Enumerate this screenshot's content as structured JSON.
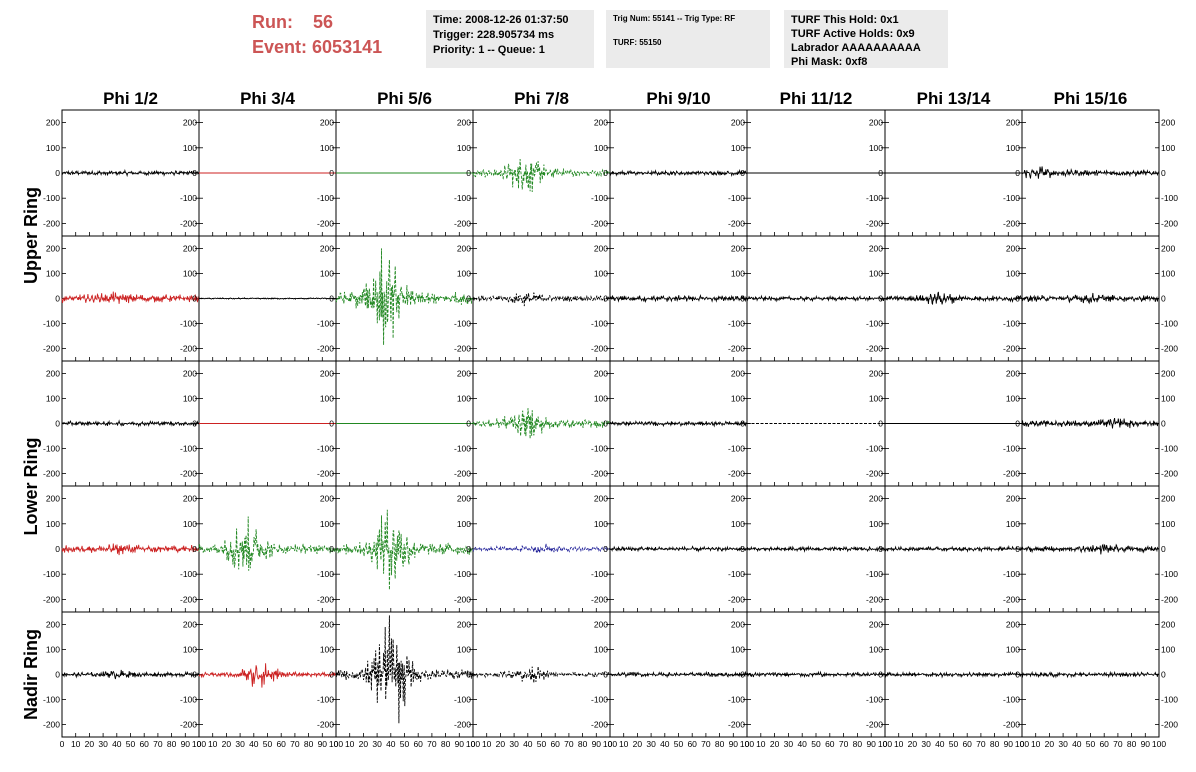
{
  "header": {
    "run_label": "Run:",
    "run_value": "56",
    "event_label": "Event:",
    "event_value": "6053141",
    "time_box": [
      "Time: 2008-12-26 01:37:50",
      "Trigger: 228.905734 ms",
      "Priority: 1 -- Queue: 1"
    ],
    "trig_box": [
      "Trig Num: 55141 -- Trig Type: RF",
      "",
      "TURF: 55150"
    ],
    "turf_box": [
      "TURF This Hold: 0x1",
      "TURF Active Holds: 0x9",
      "Labrador AAAAAAAAAA",
      "Phi Mask: 0xf8"
    ]
  },
  "chart_data": {
    "type": "line",
    "title": "",
    "columns": [
      "Phi 1/2",
      "Phi 3/4",
      "Phi 5/6",
      "Phi 7/8",
      "Phi 9/10",
      "Phi 11/12",
      "Phi 13/14",
      "Phi 15/16"
    ],
    "ring_labels": [
      "Upper Ring",
      "Lower Ring",
      "Nadir Ring"
    ],
    "xlim": [
      0,
      100
    ],
    "ylim": [
      -250,
      250
    ],
    "x_ticks": [
      0,
      10,
      20,
      30,
      40,
      50,
      60,
      70,
      80,
      90,
      100
    ],
    "y_ticks": [
      -200,
      -100,
      0,
      100,
      200
    ],
    "grid": false,
    "colors": {
      "black": "#000000",
      "red": "#cc2222",
      "green": "#228822",
      "blue": "#222299"
    },
    "panels": [
      {
        "row": 0,
        "col": 0,
        "color": "black",
        "style": "solid",
        "amp": 10,
        "burst_center": 50,
        "burst_amp": 0
      },
      {
        "row": 0,
        "col": 1,
        "color": "red",
        "style": "solid",
        "amp": 0,
        "burst_center": 50,
        "burst_amp": 0
      },
      {
        "row": 0,
        "col": 2,
        "color": "green",
        "style": "solid",
        "amp": 0,
        "burst_center": 50,
        "burst_amp": 0
      },
      {
        "row": 0,
        "col": 3,
        "color": "green",
        "style": "dashed",
        "amp": 18,
        "burst_center": 38,
        "burst_amp": 75
      },
      {
        "row": 0,
        "col": 4,
        "color": "black",
        "style": "solid",
        "amp": 10,
        "burst_center": 50,
        "burst_amp": 0
      },
      {
        "row": 0,
        "col": 5,
        "color": "black",
        "style": "solid",
        "amp": 0,
        "burst_center": 50,
        "burst_amp": 0
      },
      {
        "row": 0,
        "col": 6,
        "color": "black",
        "style": "solid",
        "amp": 0,
        "burst_center": 50,
        "burst_amp": 0
      },
      {
        "row": 0,
        "col": 7,
        "color": "black",
        "style": "solid",
        "amp": 14,
        "burst_center": 10,
        "burst_amp": 20
      },
      {
        "row": 1,
        "col": 0,
        "color": "red",
        "style": "solid",
        "amp": 18,
        "burst_center": 40,
        "burst_amp": 10
      },
      {
        "row": 1,
        "col": 1,
        "color": "black",
        "style": "solid",
        "amp": 3,
        "burst_center": 50,
        "burst_amp": 0
      },
      {
        "row": 1,
        "col": 2,
        "color": "green",
        "style": "dashed",
        "amp": 30,
        "burst_center": 35,
        "burst_amp": 190
      },
      {
        "row": 1,
        "col": 3,
        "color": "black",
        "style": "dashed",
        "amp": 12,
        "burst_center": 40,
        "burst_amp": 20
      },
      {
        "row": 1,
        "col": 4,
        "color": "black",
        "style": "solid",
        "amp": 14,
        "burst_center": 50,
        "burst_amp": 0
      },
      {
        "row": 1,
        "col": 5,
        "color": "black",
        "style": "solid",
        "amp": 10,
        "burst_center": 50,
        "burst_amp": 0
      },
      {
        "row": 1,
        "col": 6,
        "color": "black",
        "style": "solid",
        "amp": 12,
        "burst_center": 40,
        "burst_amp": 20
      },
      {
        "row": 1,
        "col": 7,
        "color": "black",
        "style": "solid",
        "amp": 14,
        "burst_center": 50,
        "burst_amp": 10
      },
      {
        "row": 2,
        "col": 0,
        "color": "black",
        "style": "solid",
        "amp": 10,
        "burst_center": 50,
        "burst_amp": 0
      },
      {
        "row": 2,
        "col": 1,
        "color": "red",
        "style": "solid",
        "amp": 0,
        "burst_center": 50,
        "burst_amp": 0
      },
      {
        "row": 2,
        "col": 2,
        "color": "green",
        "style": "solid",
        "amp": 0,
        "burst_center": 50,
        "burst_amp": 0
      },
      {
        "row": 2,
        "col": 3,
        "color": "green",
        "style": "dashed",
        "amp": 18,
        "burst_center": 38,
        "burst_amp": 70
      },
      {
        "row": 2,
        "col": 4,
        "color": "black",
        "style": "solid",
        "amp": 10,
        "burst_center": 50,
        "burst_amp": 0
      },
      {
        "row": 2,
        "col": 5,
        "color": "black",
        "style": "dashed",
        "amp": 0,
        "burst_center": 50,
        "burst_amp": 0
      },
      {
        "row": 2,
        "col": 6,
        "color": "black",
        "style": "solid",
        "amp": 0,
        "burst_center": 50,
        "burst_amp": 0
      },
      {
        "row": 2,
        "col": 7,
        "color": "black",
        "style": "solid",
        "amp": 14,
        "burst_center": 70,
        "burst_amp": 10
      },
      {
        "row": 3,
        "col": 0,
        "color": "red",
        "style": "solid",
        "amp": 16,
        "burst_center": 40,
        "burst_amp": 10
      },
      {
        "row": 3,
        "col": 1,
        "color": "green",
        "style": "dashed",
        "amp": 22,
        "burst_center": 35,
        "burst_amp": 120
      },
      {
        "row": 3,
        "col": 2,
        "color": "green",
        "style": "dashed",
        "amp": 26,
        "burst_center": 40,
        "burst_amp": 150
      },
      {
        "row": 3,
        "col": 3,
        "color": "blue",
        "style": "dashed",
        "amp": 10,
        "burst_center": 50,
        "burst_amp": 15
      },
      {
        "row": 3,
        "col": 4,
        "color": "black",
        "style": "solid",
        "amp": 10,
        "burst_center": 50,
        "burst_amp": 0
      },
      {
        "row": 3,
        "col": 5,
        "color": "black",
        "style": "solid",
        "amp": 10,
        "burst_center": 50,
        "burst_amp": 0
      },
      {
        "row": 3,
        "col": 6,
        "color": "black",
        "style": "solid",
        "amp": 10,
        "burst_center": 50,
        "burst_amp": 0
      },
      {
        "row": 3,
        "col": 7,
        "color": "black",
        "style": "solid",
        "amp": 12,
        "burst_center": 60,
        "burst_amp": 12
      },
      {
        "row": 4,
        "col": 0,
        "color": "black",
        "style": "solid",
        "amp": 10,
        "burst_center": 40,
        "burst_amp": 10
      },
      {
        "row": 4,
        "col": 1,
        "color": "red",
        "style": "solid",
        "amp": 10,
        "burst_center": 45,
        "burst_amp": 55
      },
      {
        "row": 4,
        "col": 2,
        "color": "black",
        "style": "dashed",
        "amp": 26,
        "burst_center": 40,
        "burst_amp": 230
      },
      {
        "row": 4,
        "col": 3,
        "color": "black",
        "style": "dashed",
        "amp": 10,
        "burst_center": 40,
        "burst_amp": 35
      },
      {
        "row": 4,
        "col": 4,
        "color": "black",
        "style": "solid",
        "amp": 10,
        "burst_center": 50,
        "burst_amp": 0
      },
      {
        "row": 4,
        "col": 5,
        "color": "black",
        "style": "solid",
        "amp": 10,
        "burst_center": 50,
        "burst_amp": 0
      },
      {
        "row": 4,
        "col": 6,
        "color": "black",
        "style": "solid",
        "amp": 10,
        "burst_center": 50,
        "burst_amp": 0
      },
      {
        "row": 4,
        "col": 7,
        "color": "black",
        "style": "solid",
        "amp": 10,
        "burst_center": 50,
        "burst_amp": 0
      }
    ]
  }
}
